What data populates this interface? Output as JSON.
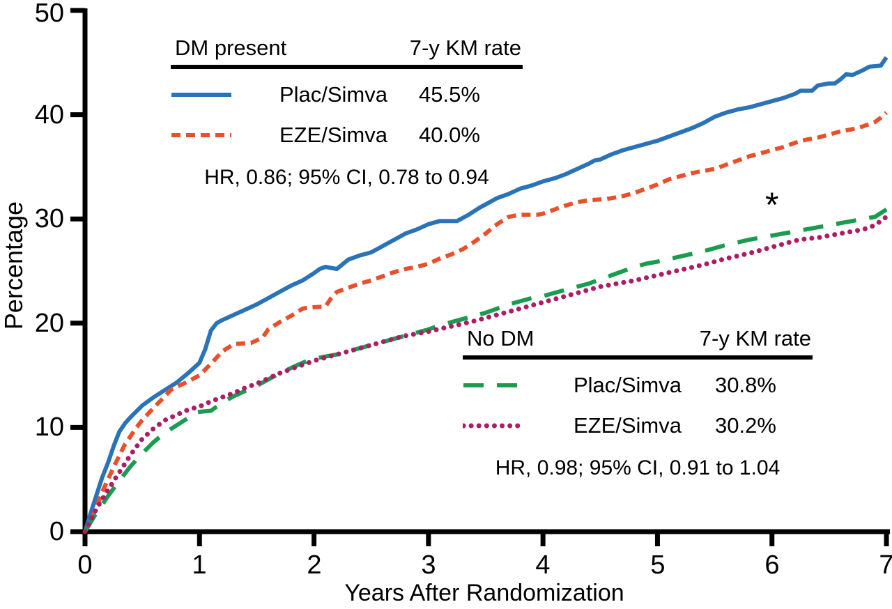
{
  "chart_data": {
    "type": "line",
    "title": "",
    "xlabel": "Years After Randomization",
    "ylabel": "Percentage",
    "xlim": [
      0,
      7
    ],
    "ylim": [
      0,
      50
    ],
    "x_tick_labels": [
      "0",
      "1",
      "2",
      "3",
      "4",
      "5",
      "6",
      "7"
    ],
    "y_tick_labels": [
      "0",
      "10",
      "20",
      "30",
      "40",
      "50"
    ],
    "grid": false,
    "legend_position": [
      "upper-left",
      "lower-right"
    ],
    "annotations": [
      {
        "text": "*",
        "x": 6.0,
        "y": 31.7
      }
    ],
    "legends": [
      {
        "title": "DM present",
        "rate_header": "7-y KM rate",
        "hr_text": "HR, 0.86; 95% CI, 0.78 to 0.94",
        "rows": [
          {
            "label": "Plac/Simva",
            "value": "45.5%",
            "series_index": 0
          },
          {
            "label": "EZE/Simva",
            "value": "40.0%",
            "series_index": 1
          }
        ]
      },
      {
        "title": "No DM",
        "rate_header": "7-y KM rate",
        "hr_text": "HR, 0.98; 95% CI, 0.91 to 1.04",
        "rows": [
          {
            "label": "Plac/Simva",
            "value": "30.8%",
            "series_index": 2
          },
          {
            "label": "EZE/Simva",
            "value": "30.2%",
            "series_index": 3
          }
        ]
      }
    ],
    "series": [
      {
        "name": "DM present Plac/Simva",
        "color": "#2B73B7",
        "line_style": "solid",
        "seven_year_km_rate": "45.5%",
        "points": [
          [
            0,
            0
          ],
          [
            0.05,
            1.8
          ],
          [
            0.1,
            3.5
          ],
          [
            0.15,
            5.2
          ],
          [
            0.2,
            6.6
          ],
          [
            0.25,
            8.2
          ],
          [
            0.3,
            9.6
          ],
          [
            0.35,
            10.4
          ],
          [
            0.4,
            11.0
          ],
          [
            0.5,
            12.1
          ],
          [
            0.6,
            12.9
          ],
          [
            0.7,
            13.6
          ],
          [
            0.8,
            14.3
          ],
          [
            0.9,
            15.2
          ],
          [
            1.0,
            16.2
          ],
          [
            1.05,
            17.5
          ],
          [
            1.1,
            19.3
          ],
          [
            1.15,
            20.0
          ],
          [
            1.2,
            20.3
          ],
          [
            1.3,
            20.8
          ],
          [
            1.4,
            21.3
          ],
          [
            1.5,
            21.8
          ],
          [
            1.6,
            22.4
          ],
          [
            1.7,
            23.0
          ],
          [
            1.8,
            23.6
          ],
          [
            1.9,
            24.1
          ],
          [
            2.0,
            24.8
          ],
          [
            2.05,
            25.2
          ],
          [
            2.1,
            25.4
          ],
          [
            2.2,
            25.2
          ],
          [
            2.3,
            26.1
          ],
          [
            2.4,
            26.5
          ],
          [
            2.5,
            26.8
          ],
          [
            2.6,
            27.4
          ],
          [
            2.7,
            28.0
          ],
          [
            2.8,
            28.6
          ],
          [
            2.9,
            29.0
          ],
          [
            3.0,
            29.5
          ],
          [
            3.1,
            29.8
          ],
          [
            3.25,
            29.8
          ],
          [
            3.35,
            30.4
          ],
          [
            3.45,
            31.1
          ],
          [
            3.5,
            31.4
          ],
          [
            3.6,
            32.0
          ],
          [
            3.7,
            32.4
          ],
          [
            3.8,
            32.9
          ],
          [
            3.9,
            33.2
          ],
          [
            4.0,
            33.6
          ],
          [
            4.1,
            33.9
          ],
          [
            4.2,
            34.3
          ],
          [
            4.3,
            34.8
          ],
          [
            4.4,
            35.3
          ],
          [
            4.45,
            35.6
          ],
          [
            4.5,
            35.7
          ],
          [
            4.6,
            36.2
          ],
          [
            4.7,
            36.6
          ],
          [
            4.8,
            36.9
          ],
          [
            4.9,
            37.2
          ],
          [
            5.0,
            37.5
          ],
          [
            5.1,
            37.9
          ],
          [
            5.2,
            38.3
          ],
          [
            5.3,
            38.7
          ],
          [
            5.4,
            39.2
          ],
          [
            5.5,
            39.8
          ],
          [
            5.6,
            40.2
          ],
          [
            5.7,
            40.5
          ],
          [
            5.8,
            40.7
          ],
          [
            5.9,
            41.0
          ],
          [
            6.0,
            41.3
          ],
          [
            6.1,
            41.6
          ],
          [
            6.2,
            42.0
          ],
          [
            6.25,
            42.3
          ],
          [
            6.35,
            42.3
          ],
          [
            6.4,
            42.8
          ],
          [
            6.5,
            43.0
          ],
          [
            6.55,
            43.0
          ],
          [
            6.6,
            43.4
          ],
          [
            6.65,
            43.9
          ],
          [
            6.7,
            43.8
          ],
          [
            6.8,
            44.3
          ],
          [
            6.85,
            44.6
          ],
          [
            6.95,
            44.7
          ],
          [
            7.0,
            45.5
          ]
        ]
      },
      {
        "name": "DM present EZE/Simva",
        "color": "#E8502B",
        "line_style": "dashed",
        "seven_year_km_rate": "40.0%",
        "points": [
          [
            0,
            0
          ],
          [
            0.05,
            1.0
          ],
          [
            0.1,
            2.3
          ],
          [
            0.15,
            3.8
          ],
          [
            0.2,
            5.0
          ],
          [
            0.25,
            6.2
          ],
          [
            0.3,
            7.3
          ],
          [
            0.35,
            8.4
          ],
          [
            0.4,
            9.2
          ],
          [
            0.45,
            10.0
          ],
          [
            0.5,
            10.7
          ],
          [
            0.6,
            11.9
          ],
          [
            0.7,
            13.0
          ],
          [
            0.75,
            13.6
          ],
          [
            0.8,
            13.9
          ],
          [
            0.9,
            14.4
          ],
          [
            1.0,
            15.0
          ],
          [
            1.1,
            16.1
          ],
          [
            1.2,
            17.3
          ],
          [
            1.3,
            18.0
          ],
          [
            1.45,
            18.1
          ],
          [
            1.55,
            18.6
          ],
          [
            1.6,
            19.4
          ],
          [
            1.7,
            20.1
          ],
          [
            1.8,
            20.7
          ],
          [
            1.9,
            21.4
          ],
          [
            1.95,
            21.5
          ],
          [
            2.1,
            21.6
          ],
          [
            2.15,
            22.4
          ],
          [
            2.2,
            23.0
          ],
          [
            2.3,
            23.4
          ],
          [
            2.4,
            23.8
          ],
          [
            2.5,
            24.1
          ],
          [
            2.6,
            24.5
          ],
          [
            2.7,
            24.9
          ],
          [
            2.8,
            25.2
          ],
          [
            2.9,
            25.4
          ],
          [
            3.0,
            25.7
          ],
          [
            3.1,
            26.2
          ],
          [
            3.2,
            26.6
          ],
          [
            3.3,
            27.1
          ],
          [
            3.4,
            27.8
          ],
          [
            3.5,
            28.6
          ],
          [
            3.6,
            29.5
          ],
          [
            3.7,
            30.2
          ],
          [
            3.8,
            30.4
          ],
          [
            3.95,
            30.4
          ],
          [
            4.0,
            30.5
          ],
          [
            4.1,
            30.9
          ],
          [
            4.2,
            31.3
          ],
          [
            4.3,
            31.6
          ],
          [
            4.4,
            31.8
          ],
          [
            4.55,
            31.9
          ],
          [
            4.7,
            32.2
          ],
          [
            4.8,
            32.5
          ],
          [
            4.9,
            32.9
          ],
          [
            5.0,
            33.3
          ],
          [
            5.1,
            33.8
          ],
          [
            5.2,
            34.1
          ],
          [
            5.3,
            34.4
          ],
          [
            5.4,
            34.6
          ],
          [
            5.5,
            34.8
          ],
          [
            5.6,
            35.2
          ],
          [
            5.7,
            35.6
          ],
          [
            5.8,
            36.0
          ],
          [
            5.9,
            36.3
          ],
          [
            6.0,
            36.6
          ],
          [
            6.1,
            36.9
          ],
          [
            6.2,
            37.3
          ],
          [
            6.3,
            37.6
          ],
          [
            6.4,
            37.8
          ],
          [
            6.5,
            38.1
          ],
          [
            6.6,
            38.4
          ],
          [
            6.7,
            38.6
          ],
          [
            6.8,
            38.9
          ],
          [
            6.9,
            39.3
          ],
          [
            6.95,
            39.7
          ],
          [
            7.0,
            40.2
          ]
        ]
      },
      {
        "name": "No DM Plac/Simva",
        "color": "#1A9C50",
        "line_style": "longdash",
        "seven_year_km_rate": "30.8%",
        "points": [
          [
            0,
            0
          ],
          [
            0.1,
            1.8
          ],
          [
            0.2,
            3.4
          ],
          [
            0.3,
            4.9
          ],
          [
            0.4,
            6.3
          ],
          [
            0.5,
            7.5
          ],
          [
            0.6,
            8.6
          ],
          [
            0.7,
            9.5
          ],
          [
            0.8,
            10.2
          ],
          [
            0.9,
            10.9
          ],
          [
            0.95,
            11.4
          ],
          [
            1.0,
            11.5
          ],
          [
            1.1,
            11.6
          ],
          [
            1.2,
            12.4
          ],
          [
            1.3,
            13.0
          ],
          [
            1.4,
            13.5
          ],
          [
            1.5,
            14.0
          ],
          [
            1.6,
            14.6
          ],
          [
            1.7,
            15.2
          ],
          [
            1.8,
            15.7
          ],
          [
            1.9,
            16.2
          ],
          [
            2.0,
            16.6
          ],
          [
            2.1,
            16.8
          ],
          [
            2.2,
            17.0
          ],
          [
            2.3,
            17.3
          ],
          [
            2.4,
            17.6
          ],
          [
            2.5,
            17.9
          ],
          [
            2.6,
            18.2
          ],
          [
            2.7,
            18.5
          ],
          [
            2.8,
            18.8
          ],
          [
            2.9,
            19.1
          ],
          [
            3.0,
            19.4
          ],
          [
            3.1,
            19.8
          ],
          [
            3.2,
            20.1
          ],
          [
            3.3,
            20.4
          ],
          [
            3.4,
            20.7
          ],
          [
            3.5,
            21.0
          ],
          [
            3.6,
            21.4
          ],
          [
            3.7,
            21.8
          ],
          [
            3.8,
            22.1
          ],
          [
            3.9,
            22.4
          ],
          [
            4.0,
            22.6
          ],
          [
            4.1,
            22.9
          ],
          [
            4.2,
            23.2
          ],
          [
            4.3,
            23.5
          ],
          [
            4.4,
            23.8
          ],
          [
            4.5,
            24.2
          ],
          [
            4.6,
            24.6
          ],
          [
            4.7,
            25.0
          ],
          [
            4.8,
            25.4
          ],
          [
            4.9,
            25.7
          ],
          [
            5.0,
            25.9
          ],
          [
            5.2,
            26.4
          ],
          [
            5.4,
            26.9
          ],
          [
            5.5,
            27.2
          ],
          [
            5.6,
            27.5
          ],
          [
            5.8,
            28.0
          ],
          [
            6.0,
            28.4
          ],
          [
            6.2,
            28.8
          ],
          [
            6.4,
            29.2
          ],
          [
            6.5,
            29.4
          ],
          [
            6.6,
            29.6
          ],
          [
            6.8,
            30.0
          ],
          [
            6.9,
            30.2
          ],
          [
            7.0,
            30.9
          ]
        ]
      },
      {
        "name": "No DM EZE/Simva",
        "color": "#AB1E66",
        "line_style": "dotted",
        "seven_year_km_rate": "30.2%",
        "points": [
          [
            0,
            0
          ],
          [
            0.1,
            2.2
          ],
          [
            0.2,
            4.0
          ],
          [
            0.3,
            5.7
          ],
          [
            0.4,
            7.4
          ],
          [
            0.5,
            8.9
          ],
          [
            0.6,
            9.9
          ],
          [
            0.7,
            10.7
          ],
          [
            0.8,
            11.2
          ],
          [
            0.9,
            11.7
          ],
          [
            1.0,
            12.0
          ],
          [
            1.1,
            12.5
          ],
          [
            1.2,
            12.9
          ],
          [
            1.3,
            13.3
          ],
          [
            1.4,
            13.8
          ],
          [
            1.5,
            14.2
          ],
          [
            1.6,
            14.7
          ],
          [
            1.7,
            15.2
          ],
          [
            1.8,
            15.6
          ],
          [
            1.9,
            16.0
          ],
          [
            2.0,
            16.4
          ],
          [
            2.1,
            16.7
          ],
          [
            2.2,
            17.0
          ],
          [
            2.3,
            17.3
          ],
          [
            2.4,
            17.6
          ],
          [
            2.5,
            17.9
          ],
          [
            2.6,
            18.2
          ],
          [
            2.7,
            18.5
          ],
          [
            2.8,
            18.8
          ],
          [
            2.9,
            19.0
          ],
          [
            3.0,
            19.2
          ],
          [
            3.2,
            19.7
          ],
          [
            3.4,
            20.2
          ],
          [
            3.5,
            20.5
          ],
          [
            3.6,
            20.8
          ],
          [
            3.8,
            21.4
          ],
          [
            4.0,
            22.0
          ],
          [
            4.2,
            22.6
          ],
          [
            4.4,
            23.2
          ],
          [
            4.5,
            23.5
          ],
          [
            4.6,
            23.7
          ],
          [
            4.8,
            24.1
          ],
          [
            5.0,
            24.6
          ],
          [
            5.2,
            25.1
          ],
          [
            5.4,
            25.6
          ],
          [
            5.5,
            25.9
          ],
          [
            5.6,
            26.2
          ],
          [
            5.8,
            26.7
          ],
          [
            6.0,
            27.3
          ],
          [
            6.1,
            27.6
          ],
          [
            6.2,
            27.9
          ],
          [
            6.3,
            28.1
          ],
          [
            6.4,
            28.2
          ],
          [
            6.5,
            28.4
          ],
          [
            6.6,
            28.6
          ],
          [
            6.8,
            29.0
          ],
          [
            6.9,
            29.4
          ],
          [
            7.0,
            30.2
          ]
        ]
      }
    ]
  }
}
